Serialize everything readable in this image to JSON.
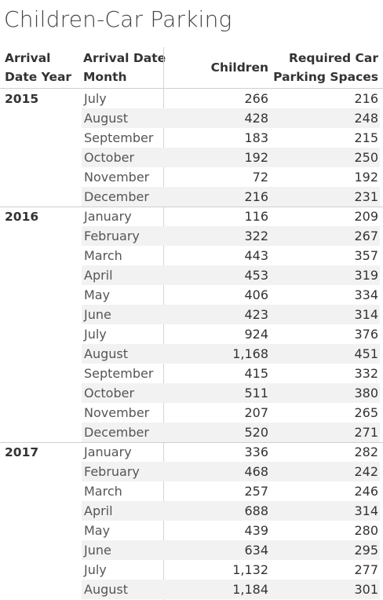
{
  "title": "Children-Car Parking",
  "chart_data": {
    "type": "table",
    "title": "Children-Car Parking",
    "columns": [
      "Arrival Date Year",
      "Arrival Date Month",
      "Children",
      "Required Car Parking Spaces"
    ],
    "column_lines": [
      [
        "Arrival",
        "Date Year"
      ],
      [
        "Arrival Date",
        "Month"
      ],
      [
        "Children"
      ],
      [
        "Required Car",
        "Parking Spaces"
      ]
    ],
    "groups": [
      {
        "year": "2015",
        "rows": [
          {
            "month": "July",
            "children": "266",
            "parking": "216"
          },
          {
            "month": "August",
            "children": "428",
            "parking": "248"
          },
          {
            "month": "September",
            "children": "183",
            "parking": "215"
          },
          {
            "month": "October",
            "children": "192",
            "parking": "250"
          },
          {
            "month": "November",
            "children": "72",
            "parking": "192"
          },
          {
            "month": "December",
            "children": "216",
            "parking": "231"
          }
        ]
      },
      {
        "year": "2016",
        "rows": [
          {
            "month": "January",
            "children": "116",
            "parking": "209"
          },
          {
            "month": "February",
            "children": "322",
            "parking": "267"
          },
          {
            "month": "March",
            "children": "443",
            "parking": "357"
          },
          {
            "month": "April",
            "children": "453",
            "parking": "319"
          },
          {
            "month": "May",
            "children": "406",
            "parking": "334"
          },
          {
            "month": "June",
            "children": "423",
            "parking": "314"
          },
          {
            "month": "July",
            "children": "924",
            "parking": "376"
          },
          {
            "month": "August",
            "children": "1,168",
            "parking": "451"
          },
          {
            "month": "September",
            "children": "415",
            "parking": "332"
          },
          {
            "month": "October",
            "children": "511",
            "parking": "380"
          },
          {
            "month": "November",
            "children": "207",
            "parking": "265"
          },
          {
            "month": "December",
            "children": "520",
            "parking": "271"
          }
        ]
      },
      {
        "year": "2017",
        "rows": [
          {
            "month": "January",
            "children": "336",
            "parking": "282"
          },
          {
            "month": "February",
            "children": "468",
            "parking": "242"
          },
          {
            "month": "March",
            "children": "257",
            "parking": "246"
          },
          {
            "month": "April",
            "children": "688",
            "parking": "314"
          },
          {
            "month": "May",
            "children": "439",
            "parking": "280"
          },
          {
            "month": "June",
            "children": "634",
            "parking": "295"
          },
          {
            "month": "July",
            "children": "1,132",
            "parking": "277"
          },
          {
            "month": "August",
            "children": "1,184",
            "parking": "301"
          }
        ]
      }
    ]
  }
}
